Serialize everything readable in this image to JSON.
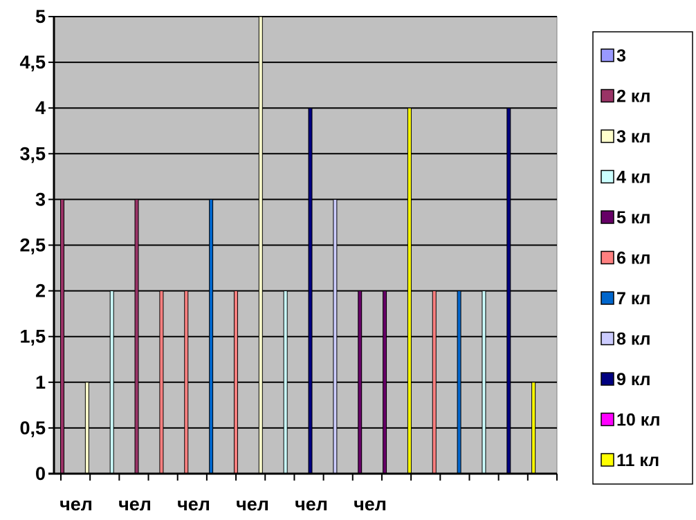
{
  "chart_data": {
    "type": "bar",
    "title": "",
    "xlabel": "",
    "ylabel": "",
    "ylim": [
      0,
      5
    ],
    "y_ticks": [
      "0",
      "0,5",
      "1",
      "1,5",
      "2",
      "2,5",
      "3",
      "3,5",
      "4",
      "4,5",
      "5"
    ],
    "x_tick_labels": [
      "чел",
      "чел",
      "чел",
      "чел",
      "чел",
      "чел"
    ],
    "grid": true,
    "legend_position": "right",
    "plot_background": "#C0C0C0",
    "series": [
      {
        "name": "3",
        "color": "#9999FF"
      },
      {
        "name": "2 кл",
        "color": "#993366"
      },
      {
        "name": "3 кл",
        "color": "#FFFFCC"
      },
      {
        "name": "4 кл",
        "color": "#CCFFFF"
      },
      {
        "name": "5 кл",
        "color": "#660066"
      },
      {
        "name": "6 кл",
        "color": "#FF8080"
      },
      {
        "name": "7 кл",
        "color": "#0066CC"
      },
      {
        "name": "8 кл",
        "color": "#CCCCFF"
      },
      {
        "name": "9 кл",
        "color": "#000080"
      },
      {
        "name": "10 кл",
        "color": "#FF00FF"
      },
      {
        "name": "11 кл",
        "color": "#FFFF00"
      }
    ],
    "bars": [
      {
        "series": 1,
        "value": 3
      },
      {
        "series": 2,
        "value": 1
      },
      {
        "series": 3,
        "value": 2
      },
      {
        "series": 1,
        "value": 3
      },
      {
        "series": 5,
        "value": 2
      },
      {
        "series": 5,
        "value": 2
      },
      {
        "series": 6,
        "value": 3
      },
      {
        "series": 5,
        "value": 2
      },
      {
        "series": 2,
        "value": 5
      },
      {
        "series": 3,
        "value": 2
      },
      {
        "series": 8,
        "value": 4
      },
      {
        "series": 7,
        "value": 3
      },
      {
        "series": 4,
        "value": 2
      },
      {
        "series": 4,
        "value": 2
      },
      {
        "series": 10,
        "value": 4
      },
      {
        "series": 5,
        "value": 2
      },
      {
        "series": 6,
        "value": 2
      },
      {
        "series": 3,
        "value": 2
      },
      {
        "series": 8,
        "value": 4
      },
      {
        "series": 10,
        "value": 1
      }
    ]
  }
}
